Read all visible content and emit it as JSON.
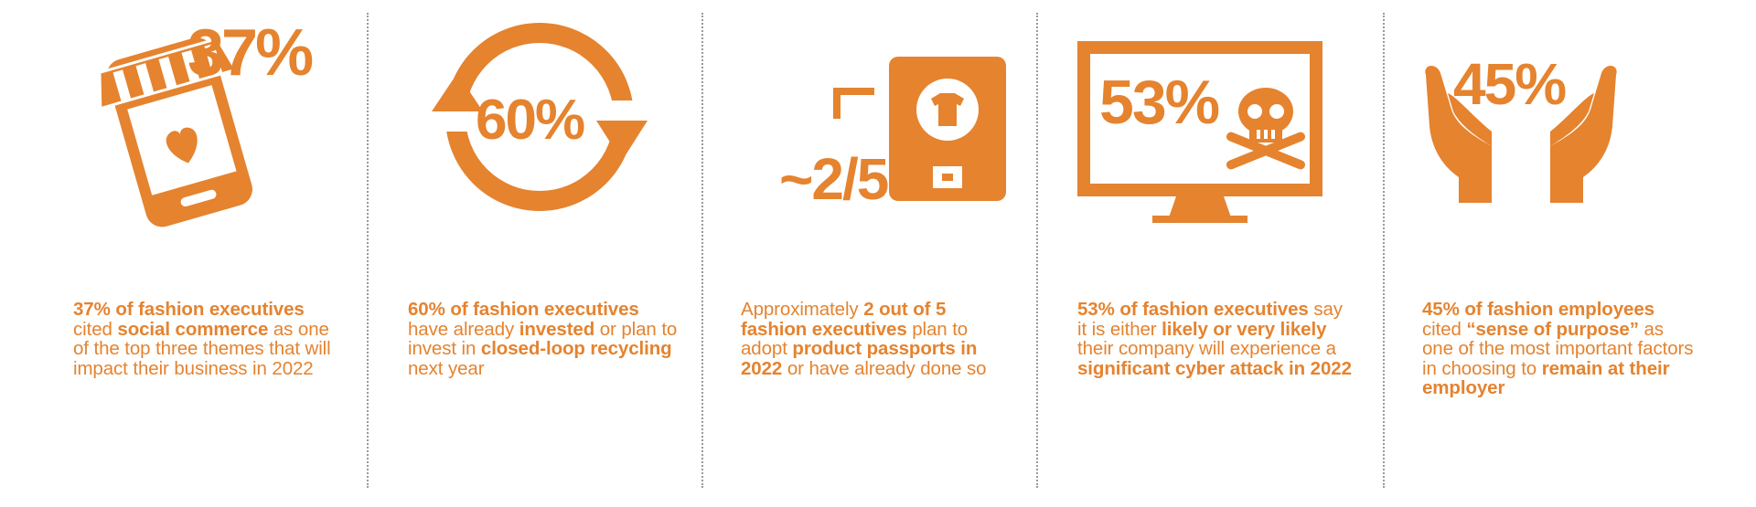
{
  "brand_color": "#e5832f",
  "stats": [
    {
      "id": "social-commerce",
      "big_value": "37%",
      "icon": "shop-on-smartphone-icon",
      "caption": [
        {
          "t": "37% of fashion executives",
          "b": true
        },
        {
          "t": " cited ",
          "b": false
        },
        {
          "t": "social commerce",
          "b": true
        },
        {
          "t": " as one of the top three themes that will impact their business in 2022",
          "b": false
        }
      ]
    },
    {
      "id": "closed-loop-recycling",
      "big_value": "60%",
      "icon": "circular-arrows-icon",
      "caption": [
        {
          "t": "60% of fashion executives",
          "b": true
        },
        {
          "t": " have already ",
          "b": false
        },
        {
          "t": "invested",
          "b": true
        },
        {
          "t": " or plan to invest in ",
          "b": false
        },
        {
          "t": "closed-loop recycling",
          "b": true
        },
        {
          "t": " next year",
          "b": false
        }
      ]
    },
    {
      "id": "product-passports",
      "big_value": "~2/5",
      "icon": "phone-with-tshirt-icon",
      "caption": [
        {
          "t": "Approximately ",
          "b": false
        },
        {
          "t": "2 out of 5 fashion executives",
          "b": true
        },
        {
          "t": " plan to adopt ",
          "b": false
        },
        {
          "t": "product passports in 2022",
          "b": true
        },
        {
          "t": " or have already done so",
          "b": false
        }
      ]
    },
    {
      "id": "cyber-attack",
      "big_value": "53%",
      "icon": "monitor-skull-icon",
      "caption": [
        {
          "t": "53% of fashion executives",
          "b": true
        },
        {
          "t": " say it is either ",
          "b": false
        },
        {
          "t": "likely or very likely",
          "b": true
        },
        {
          "t": " their company will experience a ",
          "b": false
        },
        {
          "t": "significant cyber attack in 2022",
          "b": true
        }
      ]
    },
    {
      "id": "sense-of-purpose",
      "big_value": "45%",
      "icon": "open-hands-icon",
      "caption": [
        {
          "t": "45% of fashion employees",
          "b": true
        },
        {
          "t": " cited ",
          "b": false
        },
        {
          "t": "“sense of purpose”",
          "b": true
        },
        {
          "t": " as one of the most important factors in choosing to ",
          "b": false
        },
        {
          "t": "remain at their employer",
          "b": true
        }
      ]
    }
  ]
}
